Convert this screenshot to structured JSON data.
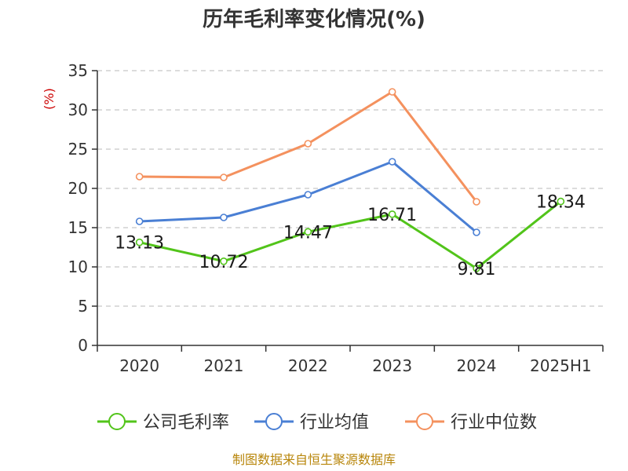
{
  "chart_data": {
    "type": "line",
    "title": "历年毛利率变化情况(%)",
    "ylabel": "(%)",
    "categories": [
      "2020",
      "2021",
      "2022",
      "2023",
      "2024",
      "2025H1"
    ],
    "ylim": [
      0,
      35
    ],
    "yticks": [
      0,
      5,
      10,
      15,
      20,
      25,
      30,
      35
    ],
    "grid": true,
    "legend_position": "bottom",
    "series": [
      {
        "name": "公司毛利率",
        "color": "#52c41a",
        "values": [
          13.13,
          10.72,
          14.47,
          16.71,
          9.81,
          18.34
        ],
        "labels": [
          "13.13",
          "10.72",
          "14.47",
          "16.71",
          "9.81",
          "18.34"
        ]
      },
      {
        "name": "行业均值",
        "color": "#4a7fd4",
        "values": [
          15.8,
          16.3,
          19.2,
          23.4,
          14.4,
          null
        ]
      },
      {
        "name": "行业中位数",
        "color": "#f4915e",
        "values": [
          21.5,
          21.4,
          25.7,
          32.3,
          18.3,
          null
        ]
      }
    ]
  },
  "source": "制图数据来自恒生聚源数据库"
}
